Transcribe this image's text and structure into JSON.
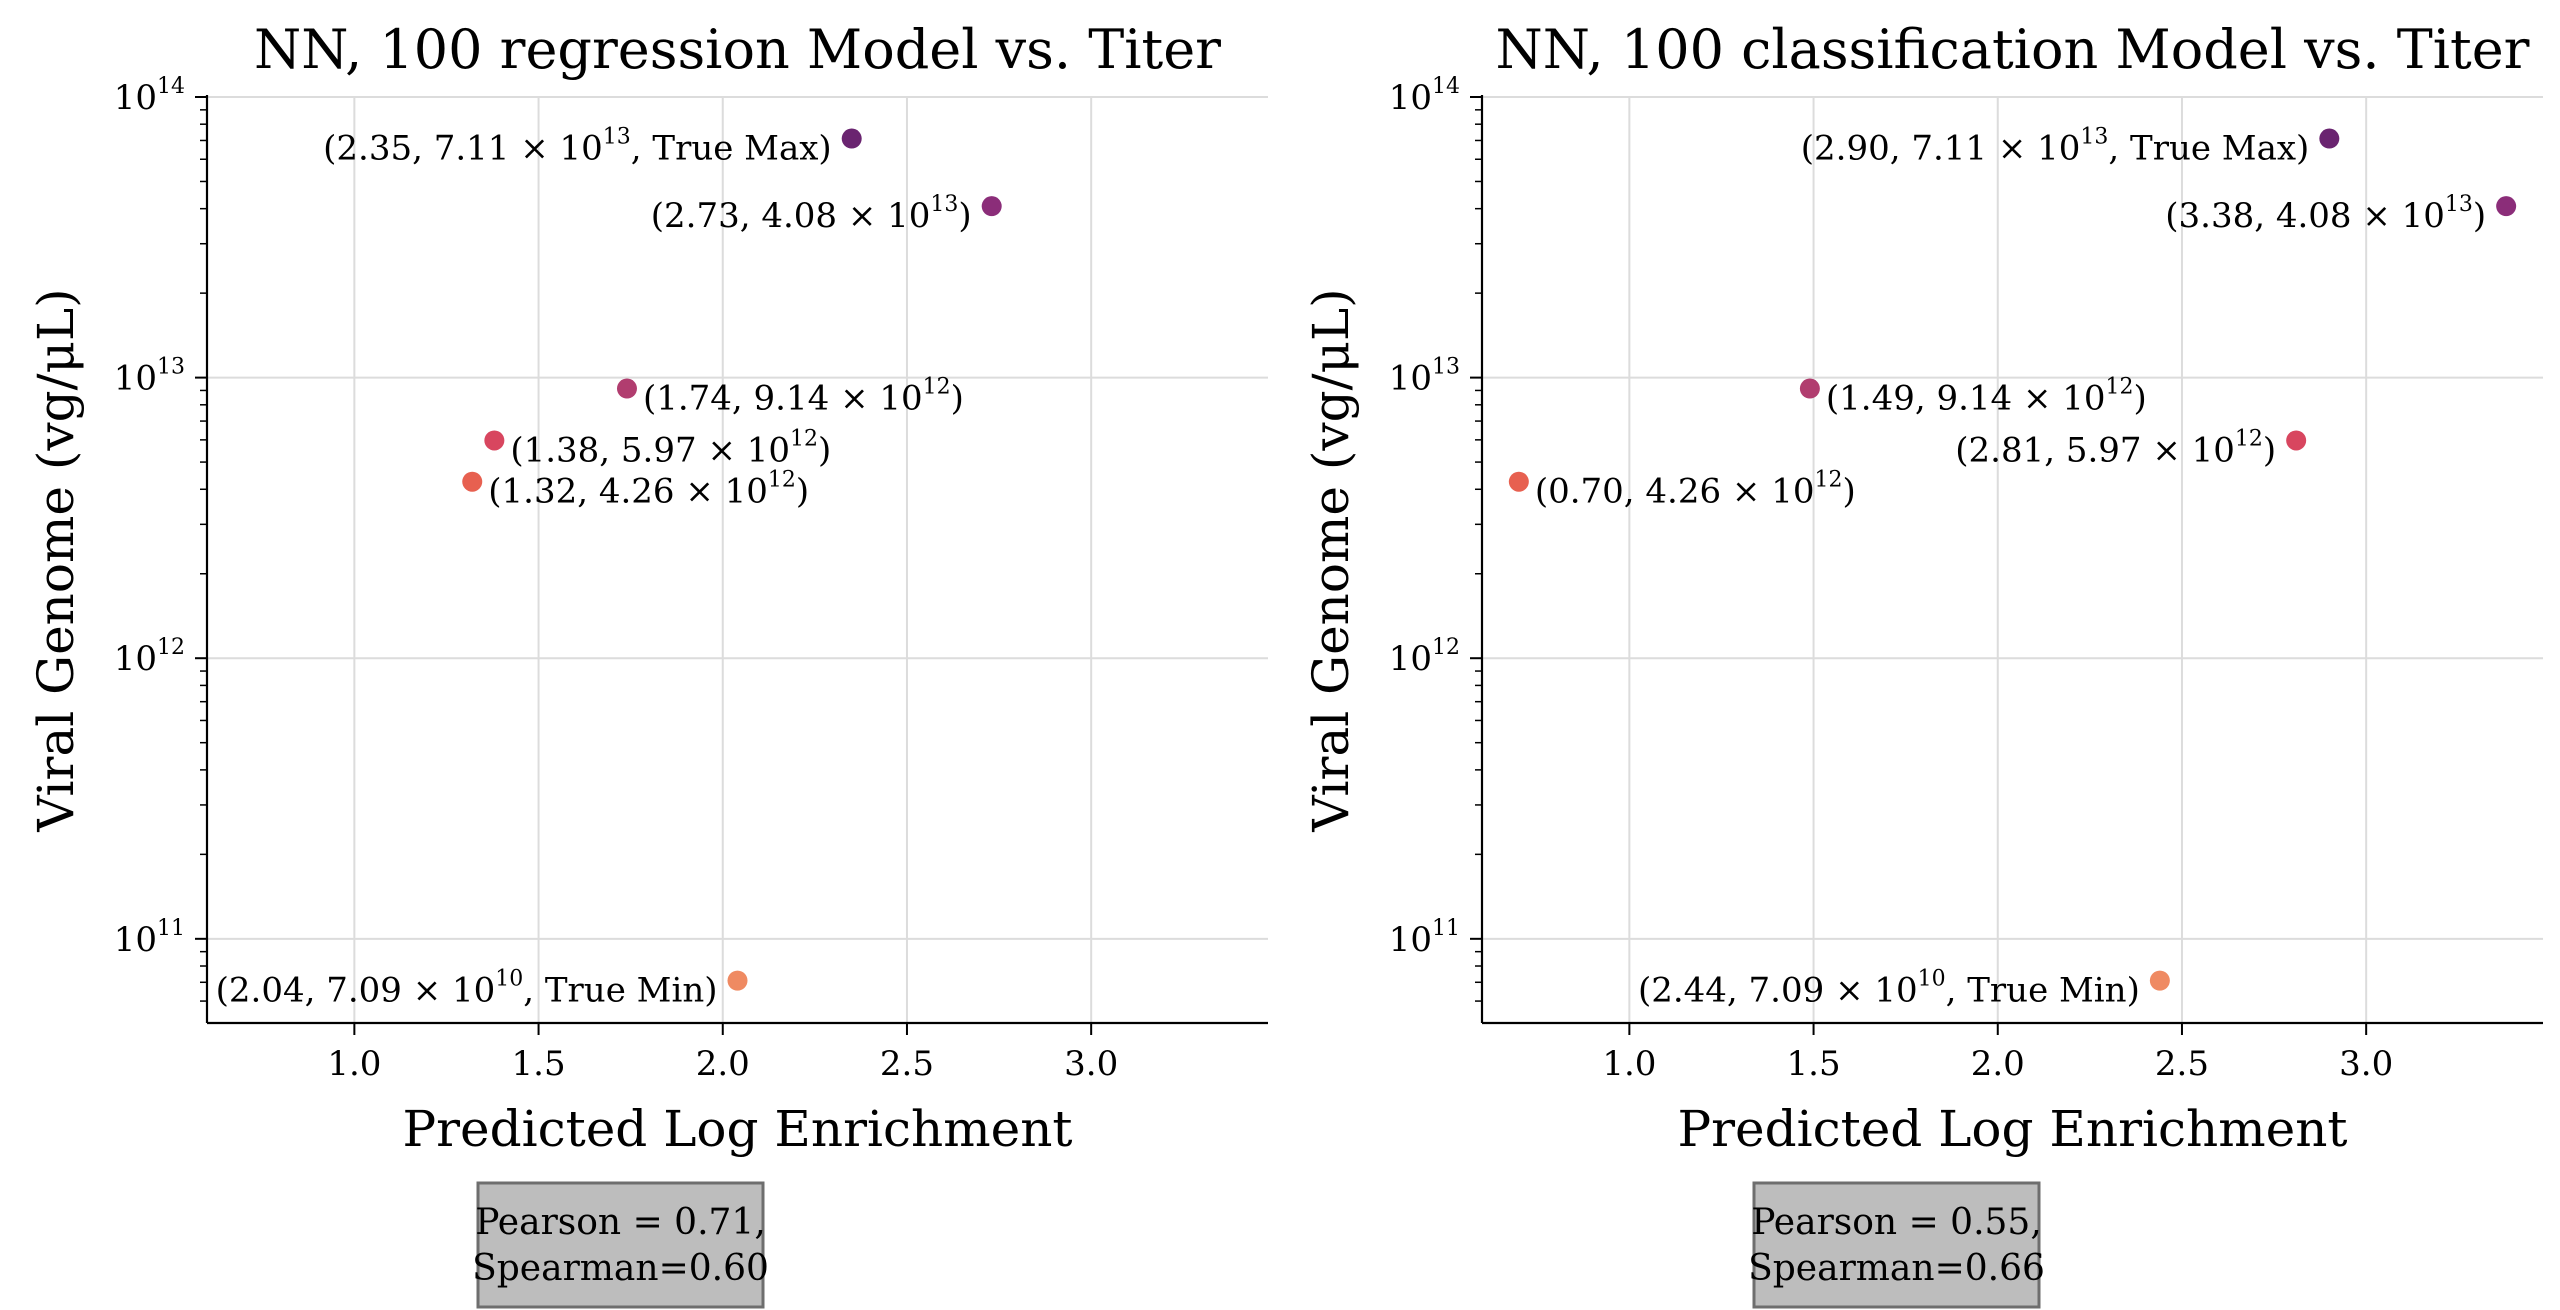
{
  "chart_data": [
    {
      "type": "scatter",
      "title": "NN, 100 regression Model vs. Titer",
      "xlabel": "Predicted Log Enrichment",
      "ylabel": "Viral Genome (vg/μL)",
      "xlim": [
        0.6,
        3.48
      ],
      "ylim_log10": [
        10.7,
        14.0
      ],
      "yscale": "log",
      "grid": true,
      "xticks": [
        1.0,
        1.5,
        2.0,
        2.5,
        3.0
      ],
      "xtick_labels": [
        "1.0",
        "1.5",
        "2.0",
        "2.5",
        "3.0"
      ],
      "yticks_log10": [
        11,
        12,
        13,
        14
      ],
      "points": [
        {
          "x": 2.35,
          "y_log10": 13.852,
          "color": "#6a2470",
          "text": "(2.35, 7.11 × 10",
          "exp": "13",
          "suffix": ", True Max)",
          "anchor": "end"
        },
        {
          "x": 2.73,
          "y_log10": 13.611,
          "color": "#8b2d79",
          "text": "(2.73, 4.08 × 10",
          "exp": "13",
          "suffix": ")",
          "anchor": "end"
        },
        {
          "x": 1.74,
          "y_log10": 12.961,
          "color": "#b13d6f",
          "text": "(1.74, 9.14 × 10",
          "exp": "12",
          "suffix": ")",
          "anchor": "start"
        },
        {
          "x": 1.38,
          "y_log10": 12.776,
          "color": "#d8465f",
          "text": "(1.38, 5.97 × 10",
          "exp": "12",
          "suffix": ")",
          "anchor": "start"
        },
        {
          "x": 1.32,
          "y_log10": 12.629,
          "color": "#e76050",
          "text": "(1.32, 4.26 × 10",
          "exp": "12",
          "suffix": ")",
          "anchor": "start"
        },
        {
          "x": 2.04,
          "y_log10": 10.851,
          "color": "#ef8a62",
          "text": "(2.04, 7.09 × 10",
          "exp": "10",
          "suffix": ", True Min)",
          "anchor": "end"
        }
      ],
      "stats": [
        "Pearson = 0.71,",
        "Spearman=0.60"
      ]
    },
    {
      "type": "scatter",
      "title": "NN, 100 classification Model vs. Titer",
      "xlabel": "Predicted Log Enrichment",
      "ylabel": "Viral Genome (vg/μL)",
      "xlim": [
        0.6,
        3.48
      ],
      "ylim_log10": [
        10.7,
        14.0
      ],
      "yscale": "log",
      "grid": true,
      "xticks": [
        1.0,
        1.5,
        2.0,
        2.5,
        3.0
      ],
      "xtick_labels": [
        "1.0",
        "1.5",
        "2.0",
        "2.5",
        "3.0"
      ],
      "yticks_log10": [
        11,
        12,
        13,
        14
      ],
      "points": [
        {
          "x": 2.9,
          "y_log10": 13.852,
          "color": "#6a2470",
          "text": "(2.90, 7.11 × 10",
          "exp": "13",
          "suffix": ", True Max)",
          "anchor": "end"
        },
        {
          "x": 3.38,
          "y_log10": 13.611,
          "color": "#8b2d79",
          "text": "(3.38, 4.08 × 10",
          "exp": "13",
          "suffix": ")",
          "anchor": "end"
        },
        {
          "x": 1.49,
          "y_log10": 12.961,
          "color": "#b13d6f",
          "text": "(1.49, 9.14 × 10",
          "exp": "12",
          "suffix": ")",
          "anchor": "start"
        },
        {
          "x": 2.81,
          "y_log10": 12.776,
          "color": "#d8465f",
          "text": "(2.81, 5.97 × 10",
          "exp": "12",
          "suffix": ")",
          "anchor": "end"
        },
        {
          "x": 0.7,
          "y_log10": 12.629,
          "color": "#e76050",
          "text": "(0.70, 4.26 × 10",
          "exp": "12",
          "suffix": ")",
          "anchor": "start"
        },
        {
          "x": 2.44,
          "y_log10": 10.851,
          "color": "#ef8a62",
          "text": "(2.44, 7.09 × 10",
          "exp": "10",
          "suffix": ", True Min)",
          "anchor": "end"
        }
      ],
      "stats": [
        "Pearson = 0.55,",
        "Spearman=0.66"
      ]
    }
  ]
}
